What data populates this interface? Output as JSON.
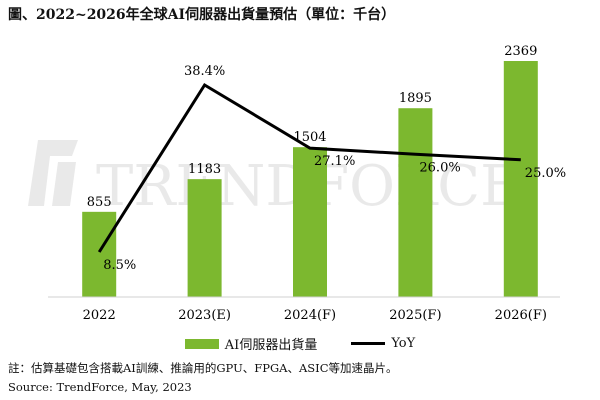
{
  "title": "圖、2022~2026年全球AI伺服器出貨量預估（單位：千台）",
  "watermark": "TRENDFORCE",
  "note": "註：估算基礎包含搭載AI訓練、推論用的GPU、FPGA、ASIC等加速晶片。",
  "source": "Source: TrendForce, May, 2023",
  "colors": {
    "bar": "#7cb82f",
    "line": "#000000"
  },
  "chart_data": {
    "type": "bar",
    "title": "圖、2022~2026年全球AI伺服器出貨量預估（單位：千台）",
    "categories": [
      "2022",
      "2023(E)",
      "2024(F)",
      "2025(F)",
      "2026(F)"
    ],
    "series": [
      {
        "name": "AI伺服器出貨量",
        "type": "bar",
        "values": [
          855,
          1183,
          1504,
          1895,
          2369
        ],
        "labels": [
          "855",
          "1183",
          "1504",
          "1895",
          "2369"
        ]
      },
      {
        "name": "YoY",
        "type": "line",
        "values": [
          8.5,
          38.4,
          27.1,
          26.0,
          25.0
        ],
        "labels": [
          "8.5%",
          "38.4%",
          "27.1%",
          "26.0%",
          "25.0%"
        ]
      }
    ],
    "ylim": [
      0,
      2500
    ],
    "y2lim": [
      0,
      45
    ],
    "legend": "bottom-center",
    "grid": false
  }
}
